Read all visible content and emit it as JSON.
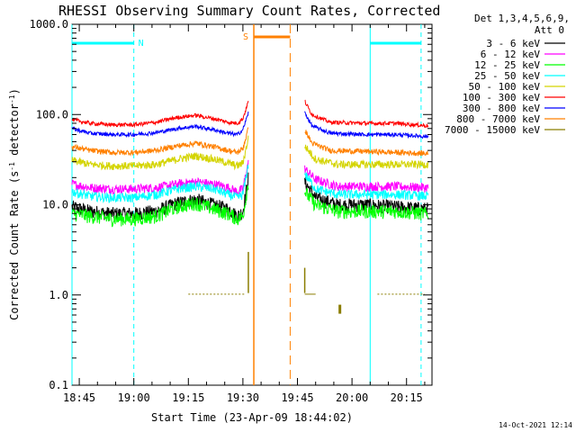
{
  "chart_data": {
    "type": "line",
    "title": "RHESSI Observing Summary Count Rates, Corrected",
    "xlabel": "Start Time (23-Apr-09 18:44:02)",
    "ylabel_main": "Corrected Count Rate (s",
    "ylabel_sup1": "-1",
    "ylabel_mid": " detector",
    "ylabel_sup2": "-1",
    "ylabel_end": ")",
    "y_scale": "log",
    "ylim": [
      0.1,
      1000
    ],
    "xlim_minutes": [
      -1,
      98
    ],
    "x_ticks": [
      {
        "m": 1,
        "label": "18:45"
      },
      {
        "m": 16,
        "label": "19:00"
      },
      {
        "m": 31,
        "label": "19:15"
      },
      {
        "m": 46,
        "label": "19:30"
      },
      {
        "m": 61,
        "label": "19:45"
      },
      {
        "m": 76,
        "label": "20:00"
      },
      {
        "m": 91,
        "label": "20:15"
      }
    ],
    "y_ticks": [
      {
        "v": 1000,
        "label": "1000.0"
      },
      {
        "v": 100,
        "label": "100.0"
      },
      {
        "v": 10,
        "label": "10.0"
      },
      {
        "v": 1,
        "label": "1.0"
      },
      {
        "v": 0.1,
        "label": "0.1"
      }
    ],
    "legend_header": [
      "Det 1,3,4,5,6,9,",
      "Att 0"
    ],
    "legend_position": "right",
    "series": [
      {
        "name": "3 - 6 keV",
        "color": "#000000",
        "pre": [
          [
            -1,
            9.5
          ],
          [
            4,
            8.5
          ],
          [
            10,
            8
          ],
          [
            16,
            8
          ],
          [
            22,
            8.5
          ],
          [
            28,
            10.5
          ],
          [
            33,
            11.5
          ],
          [
            38,
            10
          ],
          [
            42,
            9
          ],
          [
            44.5,
            7.5
          ],
          [
            46,
            8.5
          ],
          [
            47.5,
            20
          ]
        ],
        "post": [
          [
            63,
            18
          ],
          [
            66,
            12
          ],
          [
            72,
            10
          ],
          [
            80,
            10
          ],
          [
            88,
            9.5
          ],
          [
            97,
            9
          ]
        ]
      },
      {
        "name": "6 - 12 keV",
        "color": "#ff00ff",
        "pre": [
          [
            -1,
            17
          ],
          [
            4,
            15.5
          ],
          [
            10,
            15
          ],
          [
            16,
            15
          ],
          [
            22,
            15.5
          ],
          [
            28,
            17
          ],
          [
            33,
            18
          ],
          [
            38,
            17
          ],
          [
            42,
            15.5
          ],
          [
            44.5,
            14
          ],
          [
            46,
            15
          ],
          [
            47.5,
            30
          ]
        ],
        "post": [
          [
            63,
            25
          ],
          [
            66,
            19
          ],
          [
            72,
            16
          ],
          [
            80,
            16
          ],
          [
            88,
            16
          ],
          [
            97,
            15.5
          ]
        ]
      },
      {
        "name": "12 - 25 keV",
        "color": "#00ff00",
        "pre": [
          [
            -1,
            8
          ],
          [
            4,
            7.5
          ],
          [
            10,
            7
          ],
          [
            16,
            7
          ],
          [
            22,
            7.5
          ],
          [
            28,
            9.5
          ],
          [
            33,
            10.5
          ],
          [
            38,
            9
          ],
          [
            42,
            8
          ],
          [
            44.5,
            7
          ],
          [
            46,
            7.5
          ],
          [
            47.5,
            18
          ]
        ],
        "post": [
          [
            63,
            14
          ],
          [
            66,
            10
          ],
          [
            72,
            8.5
          ],
          [
            80,
            8.5
          ],
          [
            88,
            8.5
          ],
          [
            97,
            8
          ]
        ]
      },
      {
        "name": "25 - 50 keV",
        "color": "#00ffff",
        "pre": [
          [
            -1,
            14
          ],
          [
            4,
            12.5
          ],
          [
            10,
            12
          ],
          [
            16,
            12
          ],
          [
            22,
            13
          ],
          [
            28,
            15
          ],
          [
            33,
            16
          ],
          [
            38,
            15
          ],
          [
            42,
            13
          ],
          [
            44.5,
            12
          ],
          [
            46,
            13
          ],
          [
            47.5,
            28
          ]
        ],
        "post": [
          [
            63,
            22
          ],
          [
            66,
            15
          ],
          [
            72,
            13
          ],
          [
            80,
            13
          ],
          [
            88,
            13
          ],
          [
            97,
            12.5
          ]
        ]
      },
      {
        "name": "50 - 100 keV",
        "color": "#d4d400",
        "pre": [
          [
            -1,
            31
          ],
          [
            4,
            28
          ],
          [
            10,
            27
          ],
          [
            16,
            27
          ],
          [
            22,
            28
          ],
          [
            28,
            32
          ],
          [
            33,
            35
          ],
          [
            38,
            32
          ],
          [
            42,
            29
          ],
          [
            44.5,
            27
          ],
          [
            46,
            29
          ],
          [
            47.5,
            55
          ]
        ],
        "post": [
          [
            63,
            45
          ],
          [
            66,
            32
          ],
          [
            72,
            28
          ],
          [
            80,
            28
          ],
          [
            88,
            28
          ],
          [
            97,
            28
          ]
        ]
      },
      {
        "name": "100 - 300 keV",
        "color": "#ff0000",
        "pre": [
          [
            -1,
            88
          ],
          [
            4,
            80
          ],
          [
            10,
            77
          ],
          [
            16,
            77
          ],
          [
            22,
            82
          ],
          [
            28,
            93
          ],
          [
            33,
            98
          ],
          [
            38,
            90
          ],
          [
            42,
            82
          ],
          [
            44.5,
            80
          ],
          [
            46,
            90
          ],
          [
            47.5,
            140
          ]
        ],
        "post": [
          [
            63,
            140
          ],
          [
            65,
            100
          ],
          [
            70,
            82
          ],
          [
            80,
            80
          ],
          [
            88,
            80
          ],
          [
            97,
            75
          ]
        ]
      },
      {
        "name": "300 - 800 keV",
        "color": "#0000ff",
        "pre": [
          [
            -1,
            70
          ],
          [
            4,
            62
          ],
          [
            10,
            60
          ],
          [
            16,
            60
          ],
          [
            22,
            63
          ],
          [
            28,
            70
          ],
          [
            33,
            74
          ],
          [
            38,
            68
          ],
          [
            42,
            62
          ],
          [
            44.5,
            60
          ],
          [
            46,
            68
          ],
          [
            47.5,
            105
          ]
        ],
        "post": [
          [
            63,
            105
          ],
          [
            65,
            75
          ],
          [
            70,
            62
          ],
          [
            80,
            60
          ],
          [
            88,
            60
          ],
          [
            97,
            57
          ]
        ]
      },
      {
        "name": "800 - 7000 keV",
        "color": "#ff8000",
        "pre": [
          [
            -1,
            44
          ],
          [
            4,
            40
          ],
          [
            10,
            38
          ],
          [
            16,
            38
          ],
          [
            22,
            40
          ],
          [
            28,
            45
          ],
          [
            33,
            48
          ],
          [
            38,
            44
          ],
          [
            42,
            40
          ],
          [
            44.5,
            38
          ],
          [
            46,
            42
          ],
          [
            47.5,
            70
          ]
        ],
        "post": [
          [
            63,
            68
          ],
          [
            65,
            48
          ],
          [
            70,
            40
          ],
          [
            80,
            39
          ],
          [
            88,
            38
          ],
          [
            97,
            37
          ]
        ]
      },
      {
        "name": "7000 - 15000 keV",
        "color": "#8b7d00",
        "pre": [],
        "post": []
      }
    ],
    "annotations": [
      {
        "kind": "night",
        "label": "N",
        "start_m": -1,
        "end_m": 16,
        "color": "#00ffff"
      },
      {
        "kind": "night",
        "label": "",
        "start_m": 81,
        "end_m": 95,
        "color": "#00ffff"
      },
      {
        "kind": "saa",
        "label": "S",
        "start_m": 49,
        "end_m": 59,
        "color": "#ff8000"
      }
    ],
    "footer_timestamp": "14-Oct-2021 12:14"
  }
}
